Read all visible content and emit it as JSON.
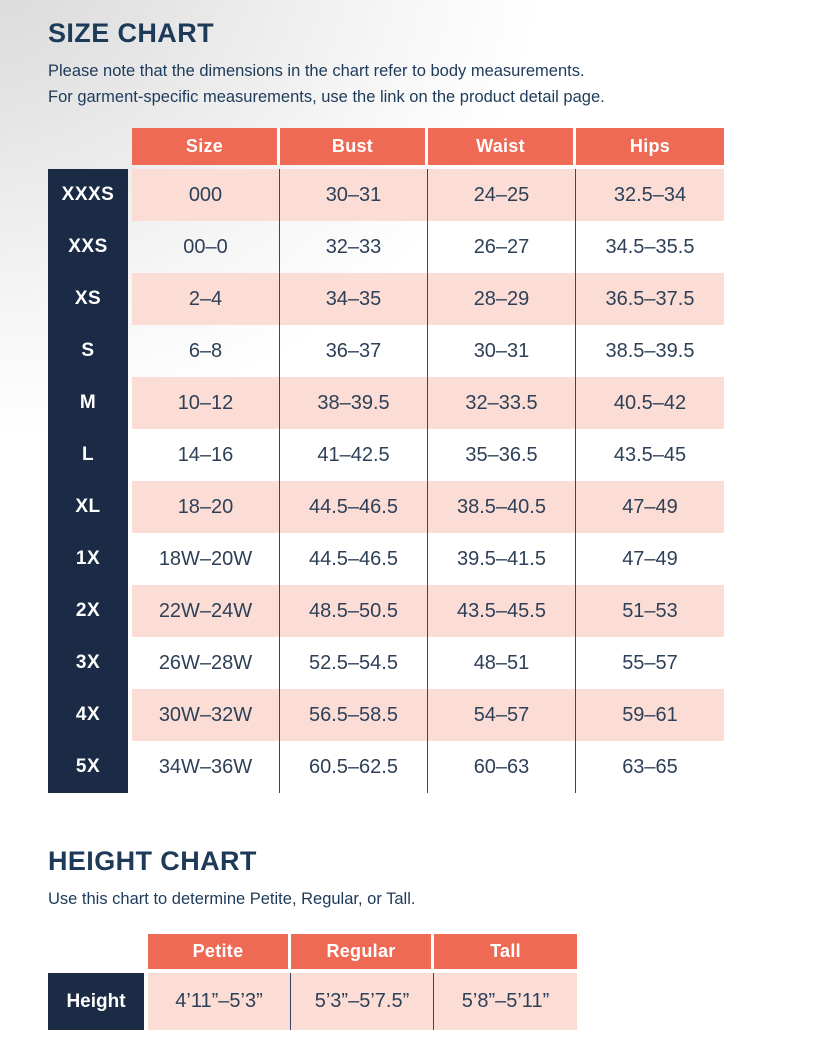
{
  "colors": {
    "orange": "#ee6a55",
    "navy": "#1b2b45",
    "pink": "#fbddd6",
    "heading_text": "#1d3a59",
    "cell_text": "#2e4057"
  },
  "size_chart": {
    "title": "SIZE CHART",
    "note_line1": "Please note that the dimensions in the chart refer to body measurements.",
    "note_line2": "For garment-specific measurements, use the link on the product detail page.",
    "columns": [
      "Size",
      "Bust",
      "Waist",
      "Hips"
    ],
    "rows": [
      {
        "label": "XXXS",
        "size": "000",
        "bust": "30–31",
        "waist": "24–25",
        "hips": "32.5–34"
      },
      {
        "label": "XXS",
        "size": "00–0",
        "bust": "32–33",
        "waist": "26–27",
        "hips": "34.5–35.5"
      },
      {
        "label": "XS",
        "size": "2–4",
        "bust": "34–35",
        "waist": "28–29",
        "hips": "36.5–37.5"
      },
      {
        "label": "S",
        "size": "6–8",
        "bust": "36–37",
        "waist": "30–31",
        "hips": "38.5–39.5"
      },
      {
        "label": "M",
        "size": "10–12",
        "bust": "38–39.5",
        "waist": "32–33.5",
        "hips": "40.5–42"
      },
      {
        "label": "L",
        "size": "14–16",
        "bust": "41–42.5",
        "waist": "35–36.5",
        "hips": "43.5–45"
      },
      {
        "label": "XL",
        "size": "18–20",
        "bust": "44.5–46.5",
        "waist": "38.5–40.5",
        "hips": "47–49"
      },
      {
        "label": "1X",
        "size": "18W–20W",
        "bust": "44.5–46.5",
        "waist": "39.5–41.5",
        "hips": "47–49"
      },
      {
        "label": "2X",
        "size": "22W–24W",
        "bust": "48.5–50.5",
        "waist": "43.5–45.5",
        "hips": "51–53"
      },
      {
        "label": "3X",
        "size": "26W–28W",
        "bust": "52.5–54.5",
        "waist": "48–51",
        "hips": "55–57"
      },
      {
        "label": "4X",
        "size": "30W–32W",
        "bust": "56.5–58.5",
        "waist": "54–57",
        "hips": "59–61"
      },
      {
        "label": "5X",
        "size": "34W–36W",
        "bust": "60.5–62.5",
        "waist": "60–63",
        "hips": "63–65"
      }
    ]
  },
  "height_chart": {
    "title": "HEIGHT CHART",
    "note": "Use this chart to determine Petite, Regular, or Tall.",
    "columns": [
      "Petite",
      "Regular",
      "Tall"
    ],
    "row_label": "Height",
    "values": [
      "4’11”–5’3”",
      "5’3”–5’7.5”",
      "5’8”–5’11”"
    ]
  }
}
